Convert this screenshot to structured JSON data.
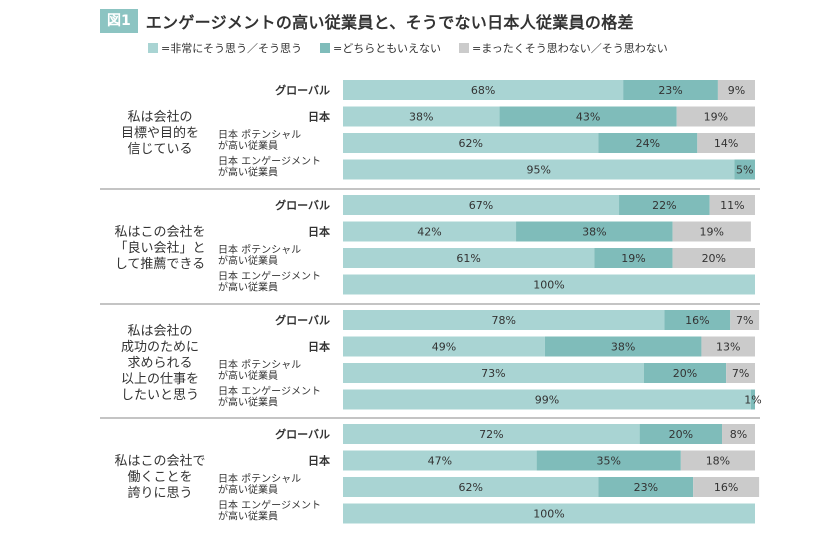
{
  "figure": {
    "badge": "図1",
    "title": "エンゲージメントの高い従業員と、そうでない日本人従業員の格差"
  },
  "colors": {
    "agree": "#a9d4d3",
    "neutral": "#7fbcba",
    "disagree": "#cbcbcb",
    "text": "#333333",
    "divider": "#888888"
  },
  "chart_data": {
    "type": "bar",
    "stacked": true,
    "horizontal": true,
    "xlim": [
      0,
      100
    ],
    "unit": "%",
    "legend": [
      "=非常にそう思う／そう思う",
      "=どちらともいえない",
      "=まったくそう思わない／そう思わない"
    ],
    "row_labels": [
      "グローバル",
      "日本",
      "日本 ポテンシャル\nが高い従業員",
      "日本 エンゲージメント\nが高い従業員"
    ],
    "groups": [
      {
        "question": "私は会社の\n目標や目的を\n信じている",
        "rows": [
          {
            "values": [
              68,
              23,
              9
            ],
            "labels": [
              "68%",
              "23%",
              "9%"
            ]
          },
          {
            "values": [
              38,
              43,
              19
            ],
            "labels": [
              "38%",
              "43%",
              "19%"
            ]
          },
          {
            "values": [
              62,
              24,
              14
            ],
            "labels": [
              "62%",
              "24%",
              "14%"
            ]
          },
          {
            "values": [
              95,
              5,
              0
            ],
            "labels": [
              "95%",
              "5%",
              ""
            ]
          }
        ]
      },
      {
        "question": "私はこの会社を\n「良い会社」と\nして推薦できる",
        "rows": [
          {
            "values": [
              67,
              22,
              11
            ],
            "labels": [
              "67%",
              "22%",
              "11%"
            ]
          },
          {
            "values": [
              42,
              38,
              19
            ],
            "labels": [
              "42%",
              "38%",
              "19%"
            ]
          },
          {
            "values": [
              61,
              19,
              20
            ],
            "labels": [
              "61%",
              "19%",
              "20%"
            ]
          },
          {
            "values": [
              100,
              0,
              0
            ],
            "labels": [
              "100%",
              "",
              ""
            ]
          }
        ]
      },
      {
        "question": "私は会社の\n成功のために\n求められる\n以上の仕事を\nしたいと思う",
        "rows": [
          {
            "values": [
              78,
              16,
              7
            ],
            "labels": [
              "78%",
              "16%",
              "7%"
            ]
          },
          {
            "values": [
              49,
              38,
              13
            ],
            "labels": [
              "49%",
              "38%",
              "13%"
            ]
          },
          {
            "values": [
              73,
              20,
              7
            ],
            "labels": [
              "73%",
              "20%",
              "7%"
            ]
          },
          {
            "values": [
              99,
              1,
              0
            ],
            "labels": [
              "99%",
              "1%",
              ""
            ]
          }
        ]
      },
      {
        "question": "私はこの会社で\n働くことを\n誇りに思う",
        "rows": [
          {
            "values": [
              72,
              20,
              8
            ],
            "labels": [
              "72%",
              "20%",
              "8%"
            ]
          },
          {
            "values": [
              47,
              35,
              18
            ],
            "labels": [
              "47%",
              "35%",
              "18%"
            ]
          },
          {
            "values": [
              62,
              23,
              16
            ],
            "labels": [
              "62%",
              "23%",
              "16%"
            ]
          },
          {
            "values": [
              100,
              0,
              0
            ],
            "labels": [
              "100%",
              "",
              ""
            ]
          }
        ]
      }
    ]
  }
}
